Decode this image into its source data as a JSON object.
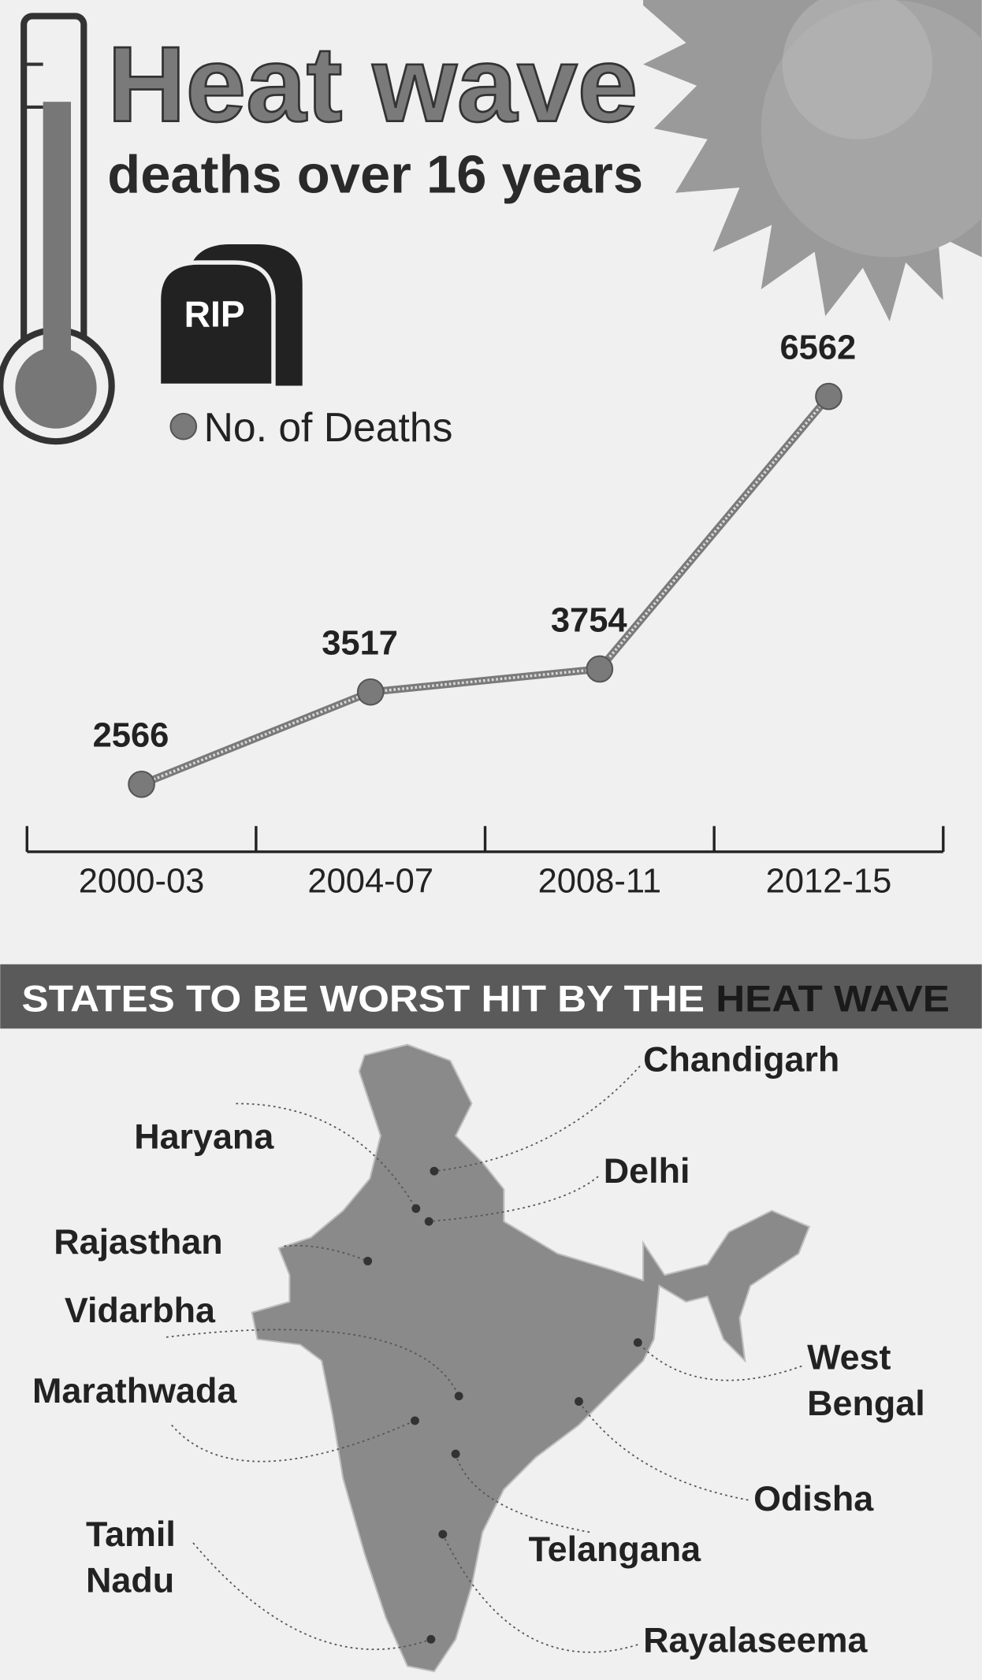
{
  "chart_data": {
    "type": "line",
    "title": "Heat wave",
    "subtitle": "deaths over 16 years",
    "icon_text": "RIP",
    "categories": [
      "2000-03",
      "2004-07",
      "2008-11",
      "2012-15"
    ],
    "series": [
      {
        "name": "No. of Deaths",
        "color": "#7a7a7a",
        "values": [
          2566,
          3517,
          3754,
          6562
        ]
      }
    ],
    "value_labels_shown": true
  },
  "banner": {
    "prefix": "STATES TO BE WORST HIT BY THE",
    "highlight": "HEAT WAVE"
  },
  "map": {
    "states": [
      {
        "label": [
          "Chandigarh"
        ]
      },
      {
        "label": [
          "Haryana"
        ]
      },
      {
        "label": [
          "Delhi"
        ]
      },
      {
        "label": [
          "Rajasthan"
        ]
      },
      {
        "label": [
          "Vidarbha"
        ]
      },
      {
        "label": [
          "Marathwada"
        ]
      },
      {
        "label": [
          "West",
          "Bengal"
        ]
      },
      {
        "label": [
          "Odisha"
        ]
      },
      {
        "label": [
          "Telangana"
        ]
      },
      {
        "label": [
          "Tamil",
          "Nadu"
        ]
      },
      {
        "label": [
          "Rayalaseema"
        ]
      }
    ]
  }
}
